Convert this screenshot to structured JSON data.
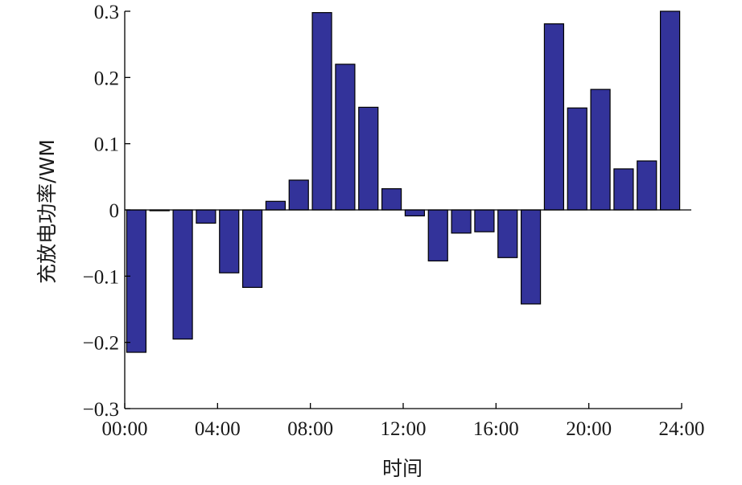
{
  "chart_data": {
    "type": "bar",
    "title": "",
    "xlabel": "时间",
    "ylabel": "充放电功率/WM",
    "ylim": [
      -0.3,
      0.3
    ],
    "xlim": [
      0,
      24
    ],
    "x_ticks": [
      0,
      4,
      8,
      12,
      16,
      20,
      24
    ],
    "x_tick_labels": [
      "00:00",
      "04:00",
      "08:00",
      "12:00",
      "16:00",
      "20:00",
      "24:00"
    ],
    "y_ticks": [
      -0.3,
      -0.2,
      -0.1,
      0,
      0.1,
      0.2,
      0.3
    ],
    "y_tick_labels": [
      "−0.3",
      "−0.2",
      "−0.1",
      "0",
      "0.1",
      "0.2",
      "0.3"
    ],
    "grid": false,
    "legend": "none",
    "bar_color": "#33339a",
    "bar_edge_color": "#000000",
    "x": [
      1,
      2,
      3,
      4,
      5,
      6,
      7,
      8,
      9,
      10,
      11,
      12,
      13,
      14,
      15,
      16,
      17,
      18,
      19,
      20,
      21,
      22,
      23,
      24
    ],
    "values": [
      -0.215,
      -0.001,
      -0.195,
      -0.02,
      -0.095,
      -0.117,
      0.013,
      0.045,
      0.298,
      0.22,
      0.155,
      0.032,
      -0.009,
      -0.077,
      -0.035,
      -0.033,
      -0.072,
      -0.142,
      0.281,
      0.154,
      0.182,
      0.062,
      0.074,
      0.3
    ]
  }
}
